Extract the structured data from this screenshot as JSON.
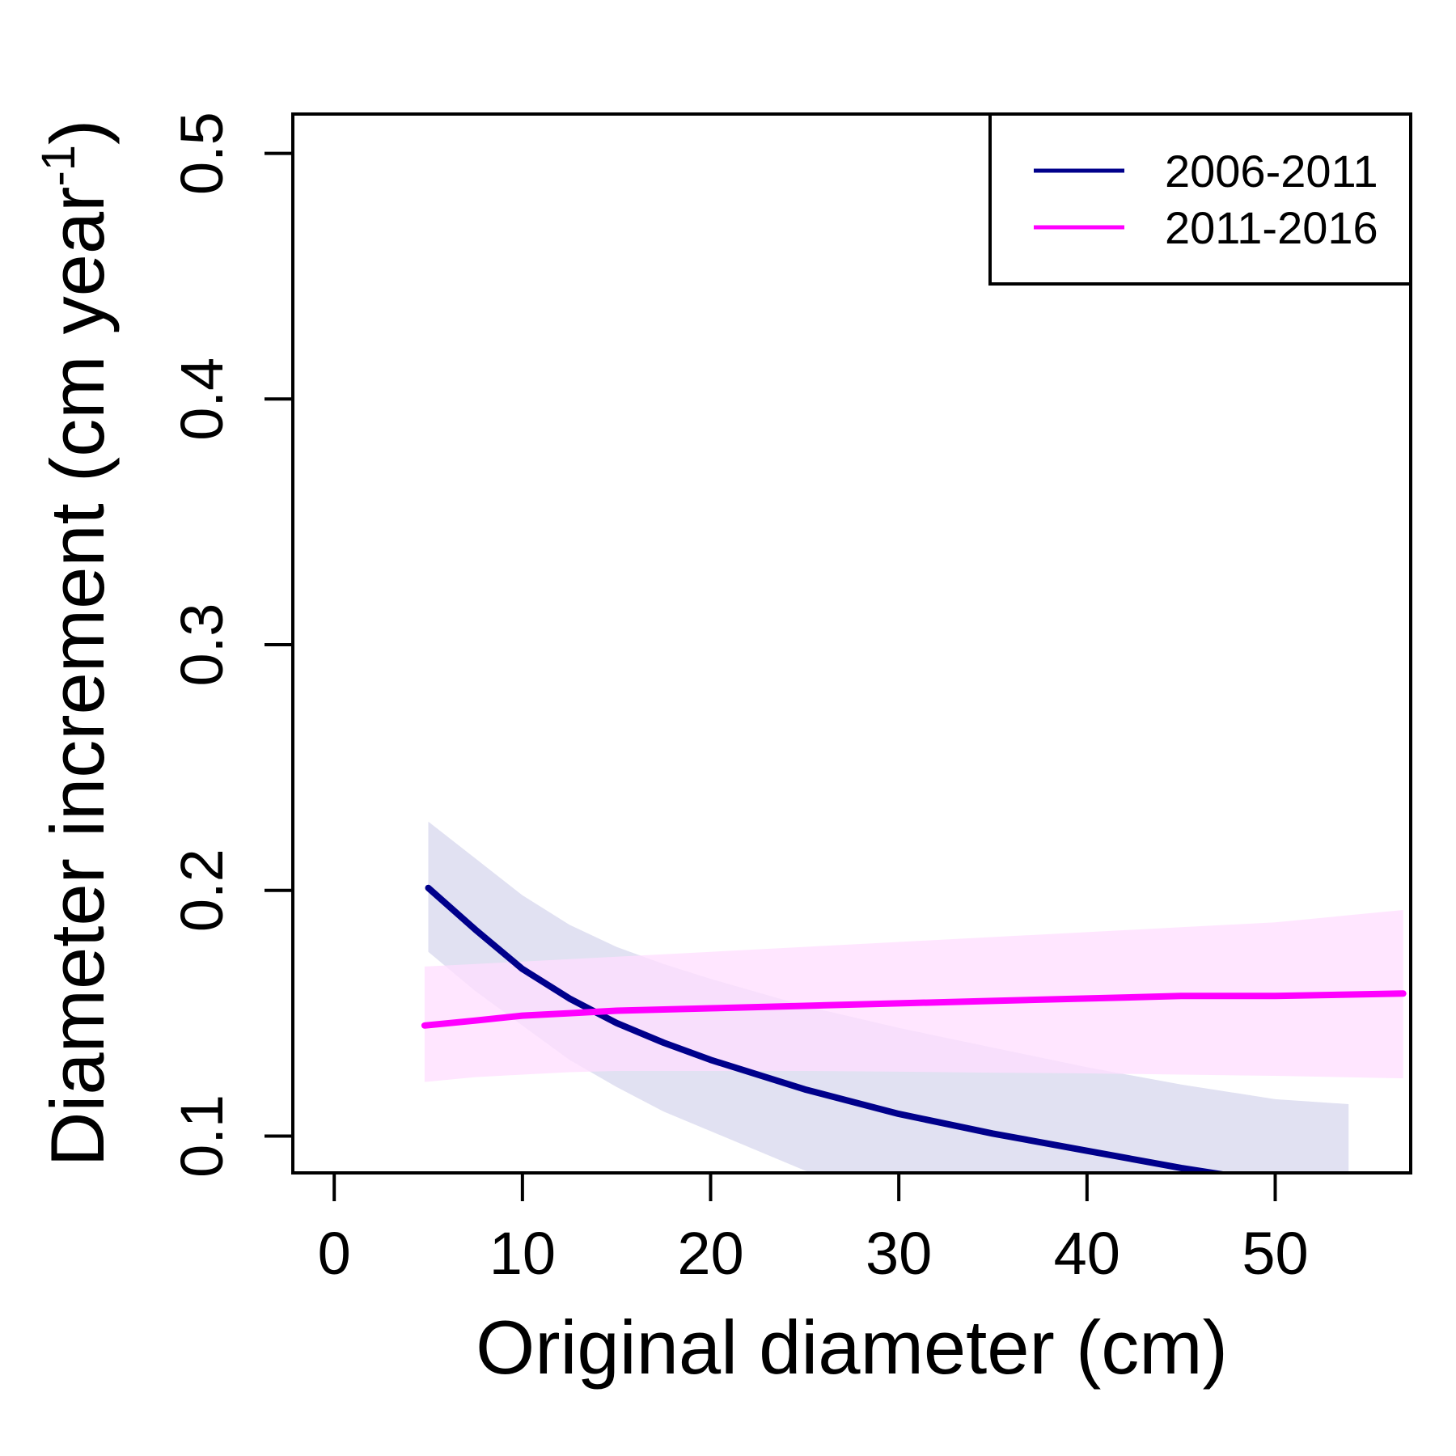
{
  "chart_data": {
    "type": "line",
    "xlabel": "Original diameter (cm)",
    "ylabel": "Diameter increment (cm year",
    "ylabel_superscript": "-1",
    "ylabel_close": ")",
    "xlim": [
      -2.2,
      57.2
    ],
    "ylim": [
      0.085,
      0.516
    ],
    "x_ticks": [
      0,
      10,
      20,
      30,
      40,
      50
    ],
    "x_tick_labels": [
      "0",
      "10",
      "20",
      "30",
      "40",
      "50"
    ],
    "y_ticks": [
      0.1,
      0.2,
      0.3,
      0.4,
      0.5
    ],
    "y_tick_labels": [
      "0.1",
      "0.2",
      "0.3",
      "0.4",
      "0.5"
    ],
    "grid": false,
    "legend_position": "top-right",
    "series": [
      {
        "name": "2006-2011",
        "color": "#00008B",
        "band_color": "#E1E1F2",
        "x": [
          5,
          7.5,
          10,
          12.5,
          15,
          17.5,
          20,
          25,
          30,
          35,
          40,
          45,
          50,
          53.9
        ],
        "y": [
          0.201,
          0.184,
          0.168,
          0.156,
          0.146,
          0.138,
          0.131,
          0.119,
          0.109,
          0.101,
          0.094,
          0.087,
          0.081,
          0.077
        ],
        "lower": [
          0.175,
          0.159,
          0.145,
          0.131,
          0.12,
          0.11,
          0.102,
          0.086,
          0.073,
          0.062,
          0.053,
          0.045,
          0.038,
          0.033
        ],
        "upper": [
          0.228,
          0.213,
          0.198,
          0.186,
          0.177,
          0.17,
          0.164,
          0.153,
          0.144,
          0.136,
          0.128,
          0.121,
          0.115,
          0.113
        ]
      },
      {
        "name": "2011-2016",
        "color": "#FF00FF",
        "band_color": "#FFDDFF",
        "x": [
          4.8,
          7.5,
          10,
          12.5,
          15,
          20,
          25,
          30,
          35,
          40,
          45,
          50,
          56.8
        ],
        "y": [
          0.145,
          0.147,
          0.149,
          0.15,
          0.151,
          0.152,
          0.153,
          0.154,
          0.155,
          0.156,
          0.157,
          0.157,
          0.158
        ],
        "lower": [
          0.122,
          0.124,
          0.125,
          0.126,
          0.1265,
          0.1265,
          0.1265,
          0.1262,
          0.1258,
          0.1255,
          0.125,
          0.1245,
          0.1235
        ],
        "upper": [
          0.169,
          0.17,
          0.171,
          0.172,
          0.173,
          0.175,
          0.177,
          0.179,
          0.181,
          0.183,
          0.185,
          0.187,
          0.192
        ]
      }
    ]
  }
}
